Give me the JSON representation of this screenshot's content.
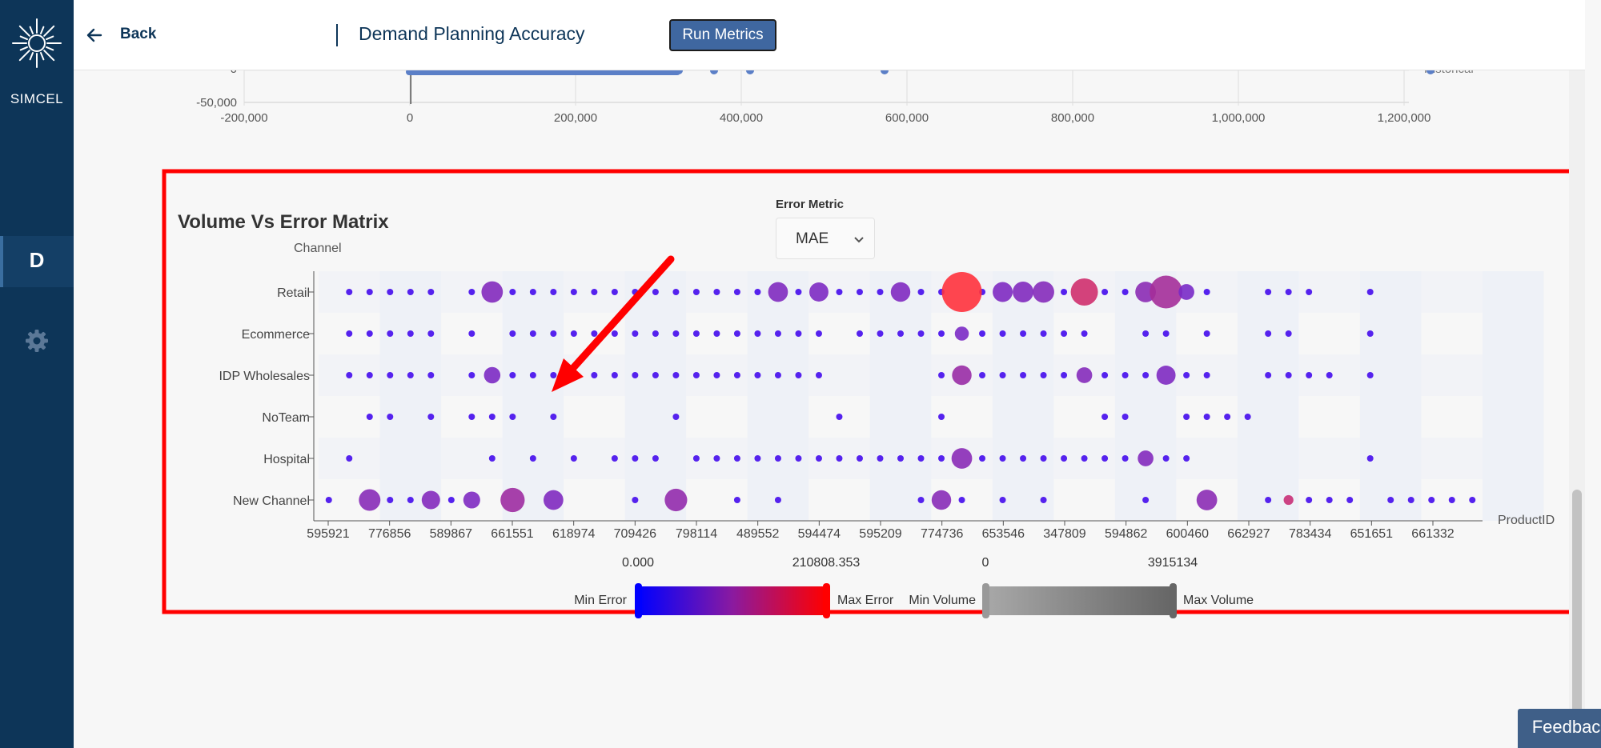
{
  "app": {
    "logo_text": "SIMCEL",
    "nav_letter": "D"
  },
  "header": {
    "back_label": "Back",
    "title": "Demand Planning Accuracy",
    "run_label": "Run Metrics"
  },
  "top_chart": {
    "y_ticks": [
      "0",
      "-50,000"
    ],
    "x_ticks": [
      "-200,000",
      "0",
      "200,000",
      "400,000",
      "600,000",
      "800,000",
      "1,000,000",
      "1,200,000"
    ],
    "legend_partial": "Historical"
  },
  "matrix": {
    "title": "Volume Vs Error Matrix",
    "y_axis_label": "Channel",
    "x_axis_label": "ProductID",
    "metric_label": "Error Metric",
    "metric_value": "MAE",
    "error_scale": {
      "min_value": "0.000",
      "max_value": "210808.353",
      "min_label": "Min Error",
      "max_label": "Max Error"
    },
    "volume_scale": {
      "min_value": "0",
      "max_value": "3915134",
      "min_label": "Min Volume",
      "max_label": "Max Volume"
    }
  },
  "chart_data": {
    "type": "scatter",
    "title": "Volume Vs Error Matrix",
    "xlabel": "ProductID",
    "ylabel": "Channel",
    "categories_y": [
      "Retail",
      "Ecommerce",
      "IDP Wholesales",
      "NoTeam",
      "Hospital",
      "New Channel"
    ],
    "x_tick_labels": [
      "595921",
      "776856",
      "589867",
      "661551",
      "618974",
      "709426",
      "798114",
      "489552",
      "594474",
      "595209",
      "774736",
      "653546",
      "347809",
      "594862",
      "600460",
      "662927",
      "783434",
      "651651",
      "661332"
    ],
    "color_scale": {
      "metric": "MAE",
      "min": 0,
      "max": 210808.353,
      "min_color": "#0000ff",
      "max_color": "#ff0000"
    },
    "size_scale": {
      "metric": "Volume",
      "min": 0,
      "max": 3915134
    },
    "columns": 57,
    "points": [
      {
        "row": "Retail",
        "cols": [
          1,
          2,
          3,
          4,
          5,
          7,
          9,
          10,
          11,
          12,
          13,
          14,
          15,
          16,
          17,
          18,
          19,
          20,
          21,
          22,
          23,
          24,
          25,
          26,
          27,
          28,
          29,
          30,
          31,
          32,
          33,
          34,
          35,
          36,
          37,
          38,
          39,
          40,
          41,
          42,
          43,
          46,
          47,
          48,
          51
        ]
      },
      {
        "row": "Ecommerce",
        "cols": [
          1,
          2,
          3,
          4,
          5,
          7,
          9,
          10,
          11,
          12,
          13,
          14,
          15,
          16,
          17,
          18,
          19,
          20,
          21,
          22,
          23,
          24,
          26,
          27,
          28,
          29,
          30,
          31,
          32,
          33,
          34,
          35,
          36,
          37,
          40,
          41,
          43,
          46,
          47,
          51
        ]
      },
      {
        "row": "IDP Wholesales",
        "cols": [
          1,
          2,
          3,
          4,
          5,
          7,
          8,
          9,
          10,
          11,
          12,
          13,
          14,
          15,
          16,
          17,
          18,
          19,
          20,
          21,
          22,
          23,
          24,
          30,
          31,
          32,
          33,
          34,
          35,
          36,
          37,
          38,
          39,
          40,
          41,
          42,
          43,
          46,
          47,
          48,
          49,
          51
        ]
      },
      {
        "row": "NoTeam",
        "cols": [
          2,
          3,
          5,
          7,
          8,
          9,
          11,
          17,
          25,
          30,
          38,
          39,
          42,
          43,
          44,
          45
        ]
      },
      {
        "row": "Hospital",
        "cols": [
          1,
          8,
          10,
          12,
          14,
          15,
          16,
          18,
          19,
          20,
          21,
          22,
          23,
          24,
          25,
          26,
          27,
          28,
          29,
          30,
          31,
          32,
          33,
          34,
          35,
          36,
          37,
          38,
          39,
          40,
          41,
          42,
          51
        ]
      },
      {
        "row": "New Channel",
        "cols": [
          0,
          2,
          3,
          4,
          5,
          6,
          7,
          9,
          11,
          15,
          17,
          20,
          22,
          29,
          30,
          31,
          33,
          35,
          40,
          43,
          46,
          47,
          48,
          49,
          50,
          52,
          53,
          54,
          55,
          56
        ]
      }
    ],
    "highlight_points": [
      {
        "row": "Retail",
        "col": 8,
        "mae": 52000,
        "volume": 780000
      },
      {
        "row": "Retail",
        "col": 22,
        "mae": 48000,
        "volume": 620000
      },
      {
        "row": "Retail",
        "col": 24,
        "mae": 45000,
        "volume": 560000
      },
      {
        "row": "Retail",
        "col": 28,
        "mae": 47000,
        "volume": 600000
      },
      {
        "row": "Retail",
        "col": 31,
        "mae": 210808,
        "volume": 3915134
      },
      {
        "row": "Retail",
        "col": 33,
        "mae": 46000,
        "volume": 640000
      },
      {
        "row": "Retail",
        "col": 34,
        "mae": 50000,
        "volume": 720000
      },
      {
        "row": "Retail",
        "col": 35,
        "mae": 55000,
        "volume": 780000
      },
      {
        "row": "Retail",
        "col": 37,
        "mae": 150000,
        "volume": 1500000
      },
      {
        "row": "Retail",
        "col": 40,
        "mae": 62000,
        "volume": 700000
      },
      {
        "row": "Retail",
        "col": 41,
        "mae": 95000,
        "volume": 2400000
      },
      {
        "row": "Retail",
        "col": 42,
        "mae": 40000,
        "volume": 300000
      },
      {
        "row": "Ecommerce",
        "col": 31,
        "mae": 42000,
        "volume": 200000
      },
      {
        "row": "IDP Wholesales",
        "col": 8,
        "mae": 44000,
        "volume": 350000
      },
      {
        "row": "IDP Wholesales",
        "col": 31,
        "mae": 80000,
        "volume": 600000
      },
      {
        "row": "IDP Wholesales",
        "col": 37,
        "mae": 55000,
        "volume": 300000
      },
      {
        "row": "IDP Wholesales",
        "col": 41,
        "mae": 46000,
        "volume": 560000
      },
      {
        "row": "Hospital",
        "col": 31,
        "mae": 60000,
        "volume": 700000
      },
      {
        "row": "Hospital",
        "col": 40,
        "mae": 52000,
        "volume": 300000
      },
      {
        "row": "New Channel",
        "col": 2,
        "mae": 58000,
        "volume": 800000
      },
      {
        "row": "New Channel",
        "col": 5,
        "mae": 52000,
        "volume": 500000
      },
      {
        "row": "New Channel",
        "col": 7,
        "mae": 46000,
        "volume": 380000
      },
      {
        "row": "New Channel",
        "col": 9,
        "mae": 85000,
        "volume": 1100000
      },
      {
        "row": "New Channel",
        "col": 11,
        "mae": 48000,
        "volume": 620000
      },
      {
        "row": "New Channel",
        "col": 17,
        "mae": 72000,
        "volume": 900000
      },
      {
        "row": "New Channel",
        "col": 30,
        "mae": 58000,
        "volume": 600000
      },
      {
        "row": "New Channel",
        "col": 43,
        "mae": 62000,
        "volume": 700000
      },
      {
        "row": "New Channel",
        "col": 47,
        "mae": 140000,
        "volume": 40000
      }
    ]
  },
  "annotation": {
    "box_color": "#ff0000",
    "arrow_color": "#ff0000"
  }
}
